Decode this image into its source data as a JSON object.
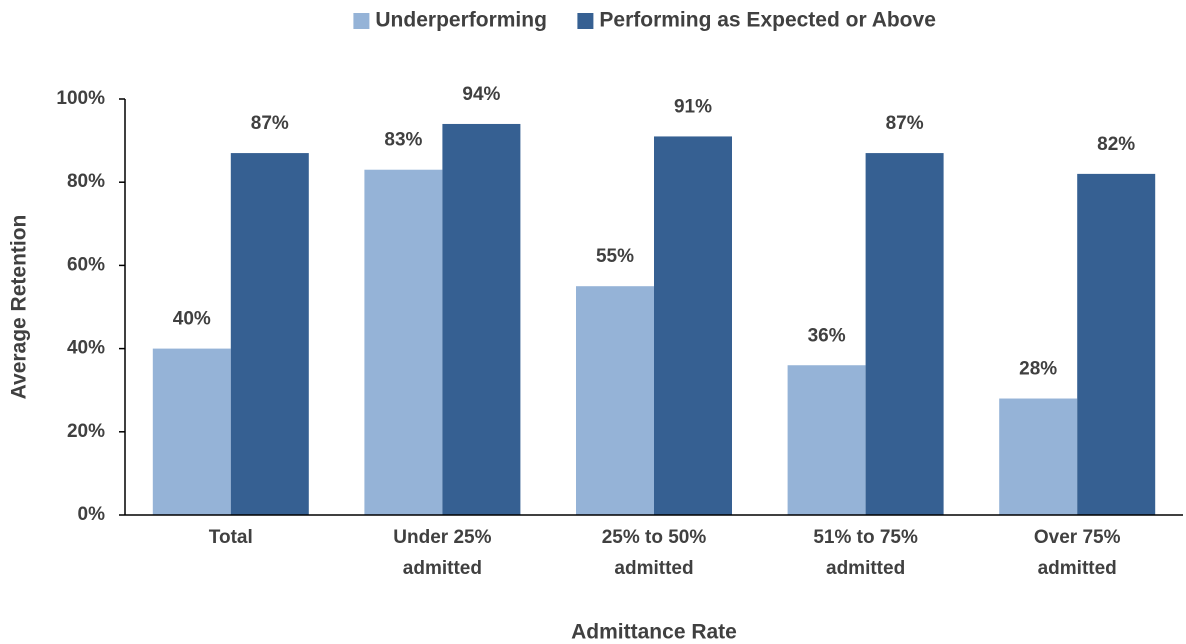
{
  "chart_data": {
    "type": "bar",
    "categories": [
      "Total",
      "Under 25%\nadmitted",
      "25% to 50%\nadmitted",
      "51% to 75%\nadmitted",
      "Over 75%\nadmitted"
    ],
    "series": [
      {
        "name": "Underperforming",
        "color": "#95b3d7",
        "values": [
          40,
          83,
          55,
          36,
          28
        ],
        "value_labels": [
          "40%",
          "83%",
          "55%",
          "36%",
          "28%"
        ]
      },
      {
        "name": "Performing as Expected or Above",
        "color": "#366092",
        "values": [
          87,
          94,
          91,
          87,
          82
        ],
        "value_labels": [
          "87%",
          "94%",
          "91%",
          "87%",
          "82%"
        ]
      }
    ],
    "xlabel": "Admittance Rate",
    "ylabel": "Average Retention",
    "ylim": [
      0,
      100
    ],
    "yticks": [
      {
        "value": 0,
        "label": "0%"
      },
      {
        "value": 20,
        "label": "20%"
      },
      {
        "value": 40,
        "label": "40%"
      },
      {
        "value": 60,
        "label": "60%"
      },
      {
        "value": 80,
        "label": "80%"
      },
      {
        "value": 100,
        "label": "100%"
      }
    ],
    "legend": "top",
    "grid": false
  }
}
